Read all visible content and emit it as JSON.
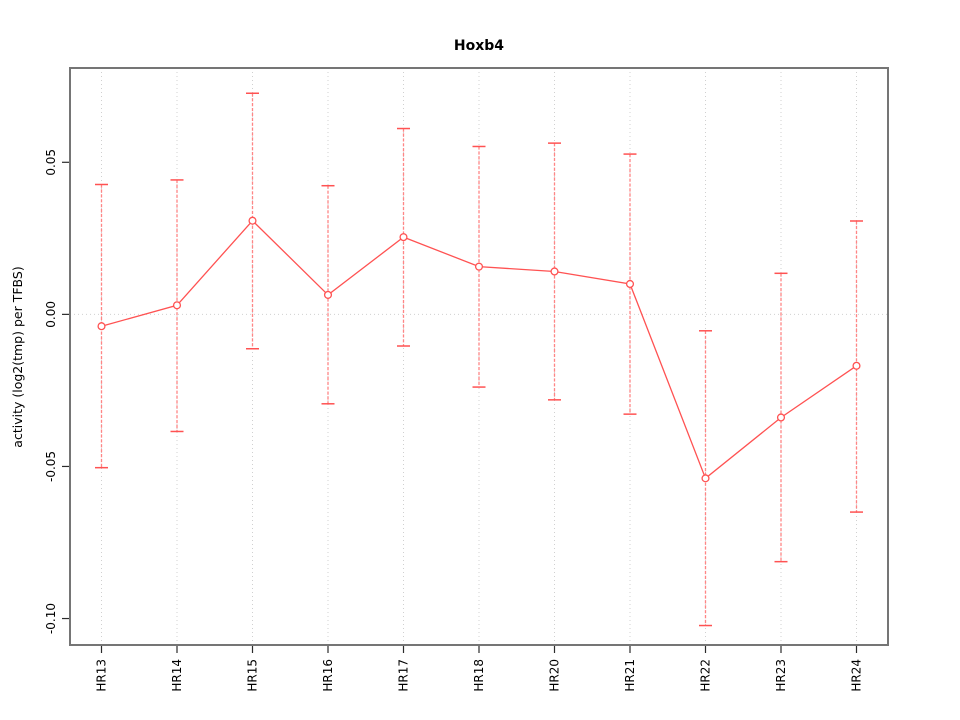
{
  "chart_data": {
    "type": "line",
    "title": "Hoxb4",
    "xlabel": "",
    "ylabel": "activity (log2(tmp) per TFBS)",
    "categories": [
      "HR13",
      "HR14",
      "HR15",
      "HR16",
      "HR17",
      "HR18",
      "HR20",
      "HR21",
      "HR22",
      "HR23",
      "HR24"
    ],
    "values": [
      -0.0039,
      0.003,
      0.0308,
      0.0064,
      0.0254,
      0.0157,
      0.0141,
      0.01,
      -0.0539,
      -0.0339,
      -0.0169
    ],
    "error_bars": {
      "upper": [
        0.0427,
        0.0442,
        0.0727,
        0.0423,
        0.0611,
        0.0552,
        0.0563,
        0.0527,
        -0.0054,
        0.0135,
        0.0307
      ],
      "lower": [
        -0.0504,
        -0.0385,
        -0.0113,
        -0.0294,
        -0.0104,
        -0.0239,
        -0.0281,
        -0.0328,
        -0.1023,
        -0.0813,
        -0.065
      ]
    },
    "y_ticks": [
      {
        "value": 0.05,
        "label": "0.05"
      },
      {
        "value": 0.0,
        "label": "0.00"
      },
      {
        "value": -0.05,
        "label": "-0.05"
      },
      {
        "value": -0.1,
        "label": "-0.10"
      }
    ],
    "ylim": [
      -0.1087,
      0.081
    ],
    "grid": {
      "vertical_per_category": true,
      "horizontal_at_zero": true,
      "style": "dotted"
    },
    "legend": null,
    "marker": "open-circle",
    "colors": {
      "series_line": "#ff5252",
      "error_bar_line": "#ff8585",
      "error_bar_cap": "#ff5252",
      "point_stroke": "#ff5252",
      "point_fill": "#ffffff",
      "gridline": "#d0d0d0",
      "plot_border": "#757575",
      "tick": "#2b2b2b",
      "text": "#000000"
    }
  }
}
